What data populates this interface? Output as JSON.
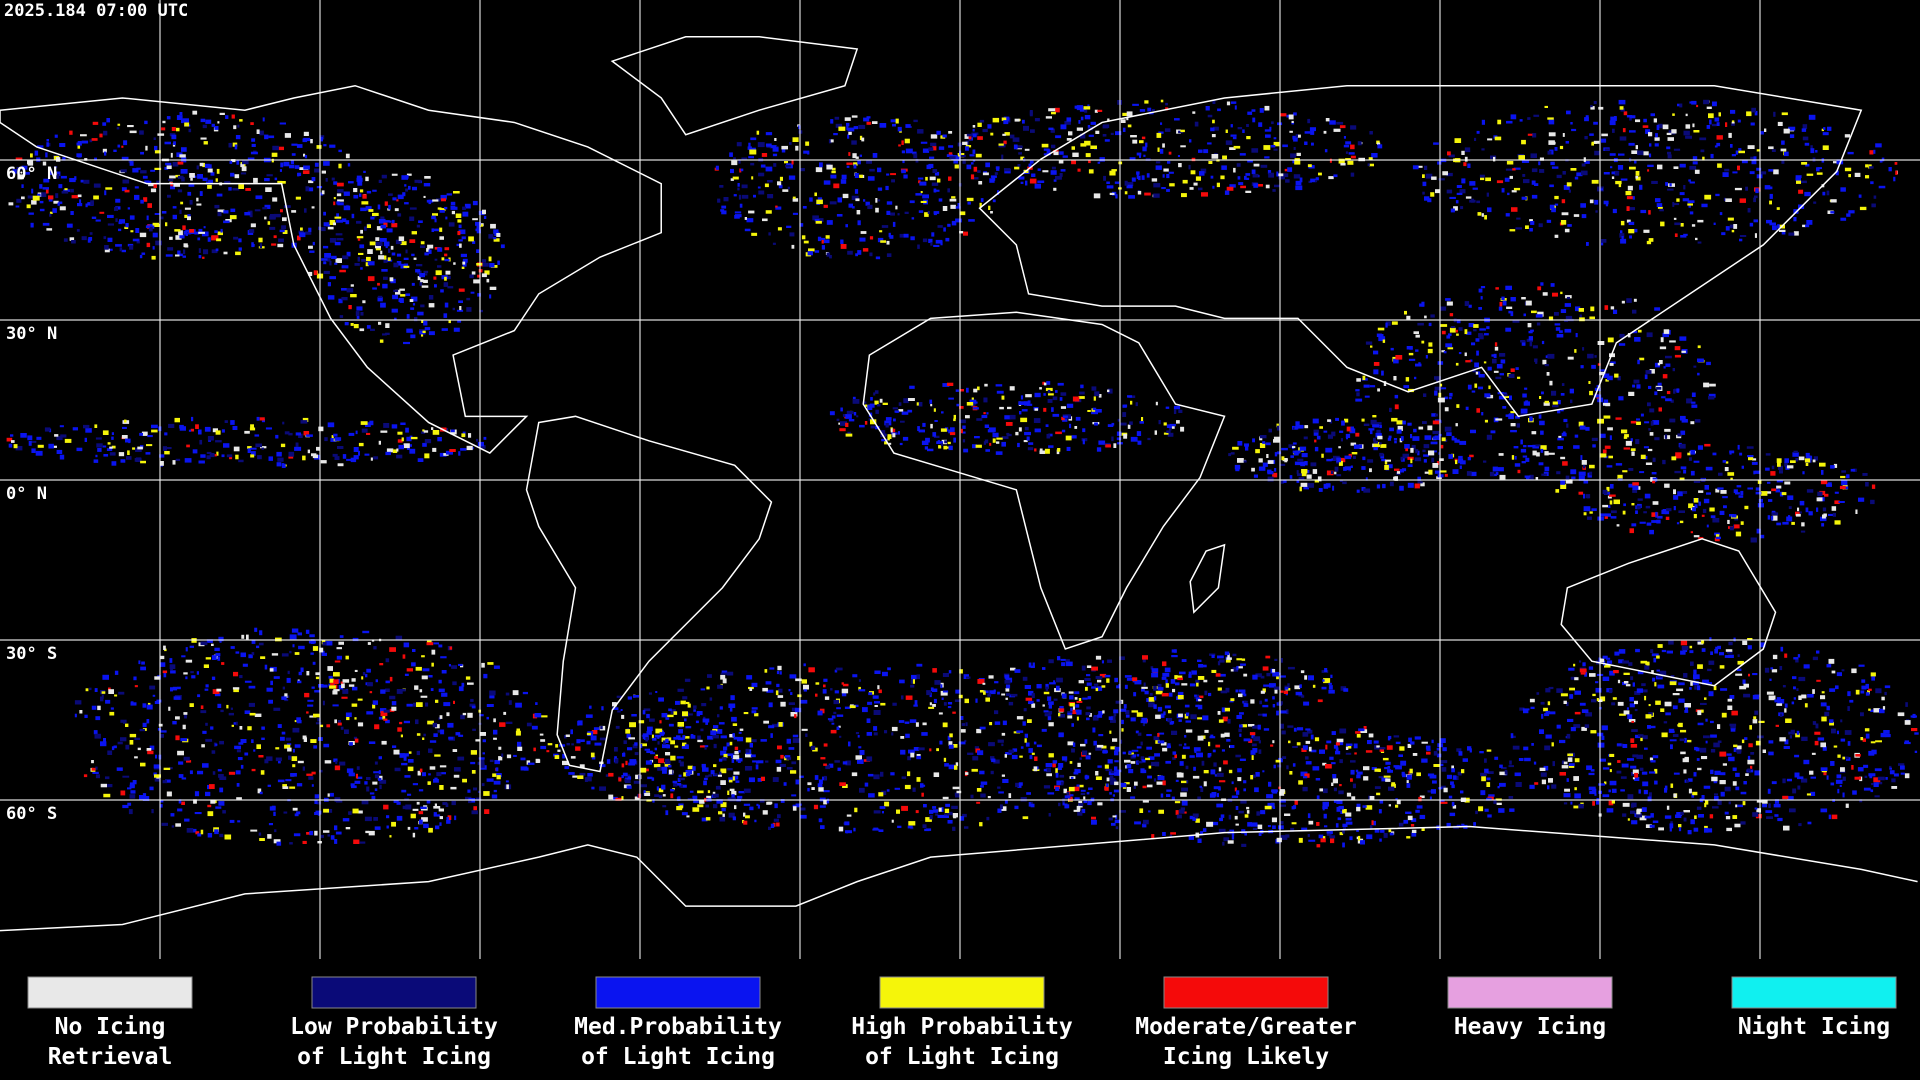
{
  "timestamp": "2025.184 07:00 UTC",
  "lat_labels": [
    "60° N",
    "30° N",
    "0° N",
    "30° S",
    "60° S"
  ],
  "legend": [
    {
      "label": [
        "No Icing",
        "Retrieval"
      ],
      "color": "#e8e8e8"
    },
    {
      "label": [
        "Low Probability",
        "of Light Icing"
      ],
      "color": "#0a0a78"
    },
    {
      "label": [
        "Med.Probability",
        "of Light Icing"
      ],
      "color": "#0a14f0"
    },
    {
      "label": [
        "High Probability",
        "of Light Icing"
      ],
      "color": "#f5f50a"
    },
    {
      "label": [
        "Moderate/Greater",
        "Icing Likely"
      ],
      "color": "#f50a0a"
    },
    {
      "label": [
        "Heavy Icing"
      ],
      "color": "#e6a0e0"
    },
    {
      "label": [
        "Night Icing"
      ],
      "color": "#10f0f0"
    }
  ]
}
